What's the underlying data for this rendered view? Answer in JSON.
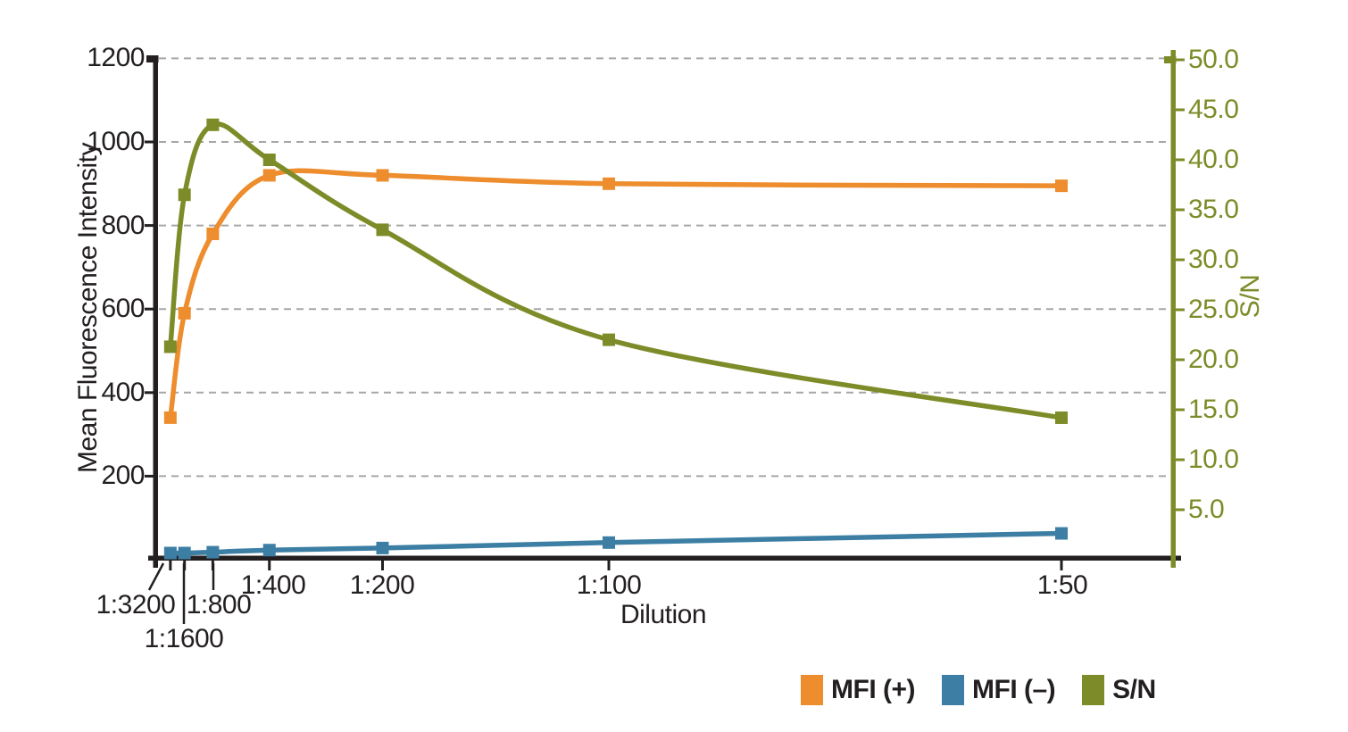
{
  "chart_data": {
    "type": "line",
    "title": "",
    "xlabel": "Dilution",
    "ylabel_left": "Mean Fluorescence Intensity",
    "ylabel_right": "S/N",
    "categories": [
      "1:3200",
      "1:1600",
      "1:800",
      "1:400",
      "1:200",
      "1:100",
      "1:50"
    ],
    "dilution_factors": [
      3200,
      1600,
      800,
      400,
      200,
      100,
      50
    ],
    "x_axis_note": "positions linear in concentration (1/dilution)",
    "left_axis": {
      "label": "Mean Fluorescence Intensity",
      "tick_values": [
        200,
        400,
        600,
        800,
        1000,
        1200
      ],
      "tick_labels": [
        "200",
        "400",
        "600",
        "800",
        "1000",
        "1200"
      ],
      "range": [
        0,
        1200
      ]
    },
    "right_axis": {
      "label": "S/N",
      "tick_values": [
        5,
        10,
        15,
        20,
        25,
        30,
        35,
        40,
        45,
        50
      ],
      "tick_labels": [
        "5.0",
        "10.0",
        "15.0",
        "20.0",
        "25.0",
        "30.0",
        "35.0",
        "40.0",
        "45.0",
        "50.0"
      ],
      "range": [
        0,
        50
      ]
    },
    "grid": "horizontal dashed gridlines at left-axis ticks",
    "legend_position": "bottom-right",
    "series": [
      {
        "name": "MFI (+)",
        "axis": "left",
        "color": "#ED8D2D",
        "values": [
          340,
          590,
          780,
          920,
          920,
          900,
          895
        ]
      },
      {
        "name": "MFI (–)",
        "axis": "left",
        "color": "#3C7EA4",
        "values": [
          16,
          16,
          18,
          23,
          28,
          41,
          63
        ]
      },
      {
        "name": "S/N",
        "axis": "right",
        "color": "#7D8C28",
        "values": [
          21.3,
          36.5,
          43.5,
          40.0,
          33.0,
          22.0,
          14.2
        ]
      }
    ]
  },
  "legend": {
    "items": [
      {
        "label": "MFI (+)",
        "color": "#ED8D2D"
      },
      {
        "label": "MFI (–)",
        "color": "#3C7EA4"
      },
      {
        "label": "S/N",
        "color": "#7D8C28"
      }
    ]
  },
  "colors": {
    "axis": "#231F20",
    "grid": "#A6A6A6",
    "right_axis": "#7D8C28",
    "text": "#231F20",
    "background": "#FFFFFF"
  }
}
